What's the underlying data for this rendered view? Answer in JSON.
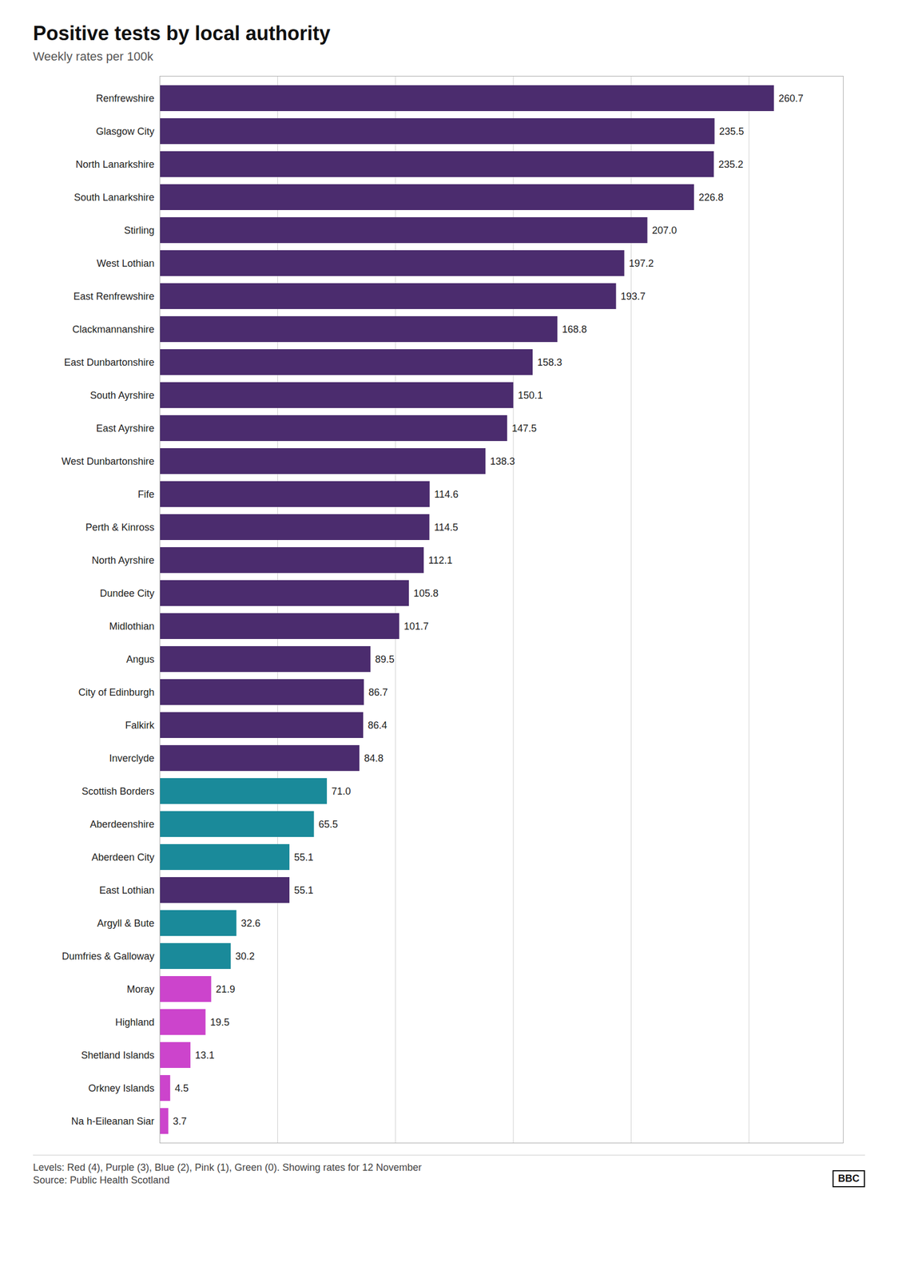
{
  "chart_data": {
    "type": "bar",
    "orientation": "horizontal",
    "title": "Positive tests by local authority",
    "subtitle": "Weekly rates per 100k",
    "annotations": [
      "Levels: Red (4), Purple (3), Blue (2), Pink (1), Green (0). Showing rates for 12 November",
      "Source: Public Health Scotland",
      "BBC"
    ],
    "categories": [
      "Renfrewshire",
      "Glasgow City",
      "North Lanarkshire",
      "South Lanarkshire",
      "Stirling",
      "West Lothian",
      "East Renfrewshire",
      "Clackmannanshire",
      "East Dunbartonshire",
      "South Ayrshire",
      "East Ayrshire",
      "West Dunbartonshire",
      "Fife",
      "Perth & Kinross",
      "North Ayrshire",
      "Dundee City",
      "Midlothian",
      "Angus",
      "City of Edinburgh",
      "Falkirk",
      "Inverclyde",
      "Scottish Borders",
      "Aberdeenshire",
      "Aberdeen City",
      "East Lothian",
      "Argyll & Bute",
      "Dumfries & Galloway",
      "Moray",
      "Highland",
      "Shetland Islands",
      "Orkney Islands",
      "Na h-Eileanan Siar"
    ],
    "values": [
      260.7,
      235.5,
      235.2,
      226.8,
      207.0,
      197.2,
      193.7,
      168.8,
      158.3,
      150.1,
      147.5,
      138.3,
      114.6,
      114.5,
      112.1,
      105.8,
      101.7,
      89.5,
      86.7,
      86.4,
      84.8,
      71.0,
      65.5,
      55.1,
      55.1,
      32.6,
      30.2,
      21.9,
      19.5,
      13.1,
      4.5,
      3.7
    ],
    "value_labels": [
      "260.7",
      "235.5",
      "235.2",
      "226.8",
      "207.0",
      "197.2",
      "193.7",
      "168.8",
      "158.3",
      "150.1",
      "147.5",
      "138.3",
      "114.6",
      "114.5",
      "112.1",
      "105.8",
      "101.7",
      "89.5",
      "86.7",
      "86.4",
      "84.8",
      "71.0",
      "65.5",
      "55.1",
      "55.1",
      "32.6",
      "30.2",
      "21.9",
      "19.5",
      "13.1",
      "4.5",
      "3.7"
    ],
    "colors": [
      "#4b2c6e",
      "#4b2c6e",
      "#4b2c6e",
      "#4b2c6e",
      "#4b2c6e",
      "#4b2c6e",
      "#4b2c6e",
      "#4b2c6e",
      "#4b2c6e",
      "#4b2c6e",
      "#4b2c6e",
      "#4b2c6e",
      "#4b2c6e",
      "#4b2c6e",
      "#4b2c6e",
      "#4b2c6e",
      "#4b2c6e",
      "#4b2c6e",
      "#4b2c6e",
      "#4b2c6e",
      "#4b2c6e",
      "#1a8a9a",
      "#1a8a9a",
      "#1a8a9a",
      "#4b2c6e",
      "#1a8a9a",
      "#1a8a9a",
      "#cc44cc",
      "#cc44cc",
      "#cc44cc",
      "#cc44cc",
      "#cc44cc"
    ],
    "xlim": [
      0,
      290
    ],
    "xticks": [
      50,
      100,
      150,
      200,
      250
    ],
    "grid": true,
    "data_labels": true,
    "tick_labels": "y"
  }
}
